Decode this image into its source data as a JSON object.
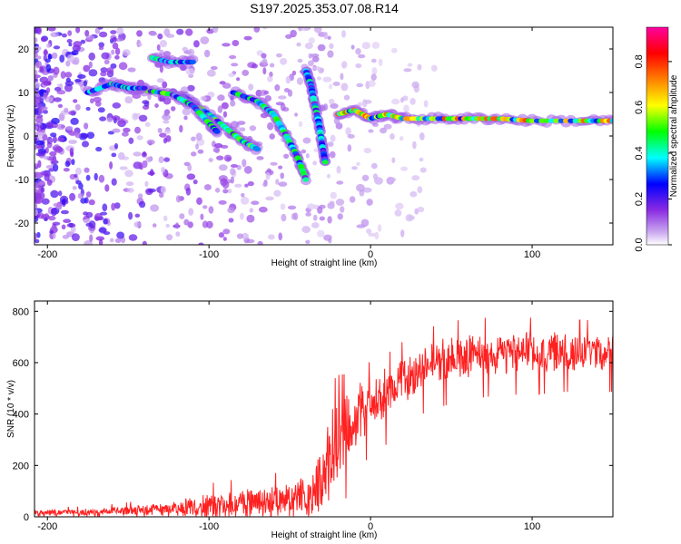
{
  "title": "S197.2025.353.07.08.R14",
  "chart_data": [
    {
      "type": "heatmap",
      "name": "spectrogram",
      "xlabel": "Height of straight line (km)",
      "ylabel": "Frequency (Hz)",
      "xlim": [
        -208,
        150
      ],
      "ylim": [
        -25,
        25
      ],
      "xticks": [
        -200,
        -100,
        0,
        100
      ],
      "yticks": [
        -20,
        -10,
        0,
        10,
        20
      ],
      "colorbar": {
        "label": "Normalized spectral amplitude",
        "range": [
          0.0,
          0.95
        ],
        "ticks": [
          0.0,
          0.2,
          0.4,
          0.6,
          0.8
        ],
        "tick_labels": [
          "0.0",
          "0.2",
          "0.4",
          "0.6",
          "0.8"
        ],
        "colors": [
          "#ffffff",
          "#8a2be2",
          "#0000ff",
          "#00ffff",
          "#00ff00",
          "#ffff00",
          "#ff8000",
          "#ff0000",
          "#ff00a0"
        ]
      },
      "ridges": [
        {
          "name": "main-carrier",
          "points": [
            [
              -20,
              5
            ],
            [
              -10,
              6
            ],
            [
              0,
              4
            ],
            [
              10,
              5
            ],
            [
              20,
              4
            ],
            [
              40,
              4
            ],
            [
              60,
              4
            ],
            [
              80,
              4
            ],
            [
              100,
              3.5
            ],
            [
              130,
              3.5
            ],
            [
              150,
              3.5
            ]
          ],
          "amplitude": 0.75
        },
        {
          "name": "descending-branch-1",
          "points": [
            [
              -150,
              11
            ],
            [
              -130,
              10
            ],
            [
              -115,
              9
            ],
            [
              -100,
              5
            ],
            [
              -90,
              2
            ],
            [
              -80,
              -1
            ],
            [
              -70,
              -3
            ]
          ],
          "amplitude": 0.55
        },
        {
          "name": "descending-branch-2",
          "points": [
            [
              -120,
              9
            ],
            [
              -110,
              7
            ],
            [
              -100,
              3
            ],
            [
              -95,
              1
            ]
          ],
          "amplitude": 0.5
        },
        {
          "name": "descending-branch-3",
          "points": [
            [
              -85,
              10
            ],
            [
              -70,
              8
            ],
            [
              -60,
              5
            ],
            [
              -52,
              0
            ],
            [
              -45,
              -5
            ],
            [
              -40,
              -10
            ]
          ],
          "amplitude": 0.5
        },
        {
          "name": "upper-streak",
          "points": [
            [
              -135,
              18
            ],
            [
              -125,
              17
            ],
            [
              -110,
              17
            ]
          ],
          "amplitude": 0.5
        },
        {
          "name": "steep-streak",
          "points": [
            [
              -40,
              15
            ],
            [
              -37,
              12
            ],
            [
              -35,
              8
            ],
            [
              -32,
              3
            ],
            [
              -30,
              -2
            ],
            [
              -28,
              -6
            ]
          ],
          "amplitude": 0.45
        },
        {
          "name": "left-branch",
          "points": [
            [
              -175,
              10
            ],
            [
              -160,
              12
            ],
            [
              -150,
              11
            ],
            [
              -140,
              11
            ]
          ],
          "amplitude": 0.45
        }
      ]
    },
    {
      "type": "line",
      "name": "snr",
      "xlabel": "Height of straight line (km)",
      "ylabel": "SNR (10 * v/v)",
      "xlim": [
        -208,
        150
      ],
      "ylim": [
        0,
        840
      ],
      "xticks": [
        -200,
        -100,
        0,
        100
      ],
      "yticks": [
        0,
        200,
        400,
        600,
        800
      ],
      "color": "#ff2020",
      "envelope": {
        "x": [
          -208,
          -180,
          -160,
          -145,
          -130,
          -115,
          -100,
          -80,
          -60,
          -45,
          -35,
          -28,
          -25,
          -20,
          -15,
          -10,
          -5,
          0,
          5,
          10,
          15,
          20,
          30,
          40,
          60,
          80,
          100,
          120,
          140,
          150
        ],
        "base": [
          15,
          18,
          22,
          25,
          30,
          35,
          40,
          50,
          60,
          70,
          90,
          150,
          230,
          300,
          340,
          380,
          420,
          440,
          460,
          480,
          500,
          540,
          570,
          600,
          630,
          640,
          640,
          640,
          640,
          640
        ],
        "amp": [
          12,
          12,
          15,
          20,
          25,
          35,
          50,
          55,
          60,
          70,
          100,
          150,
          160,
          140,
          120,
          110,
          100,
          90,
          90,
          90,
          80,
          80,
          80,
          80,
          80,
          75,
          75,
          70,
          70,
          70
        ]
      }
    }
  ]
}
